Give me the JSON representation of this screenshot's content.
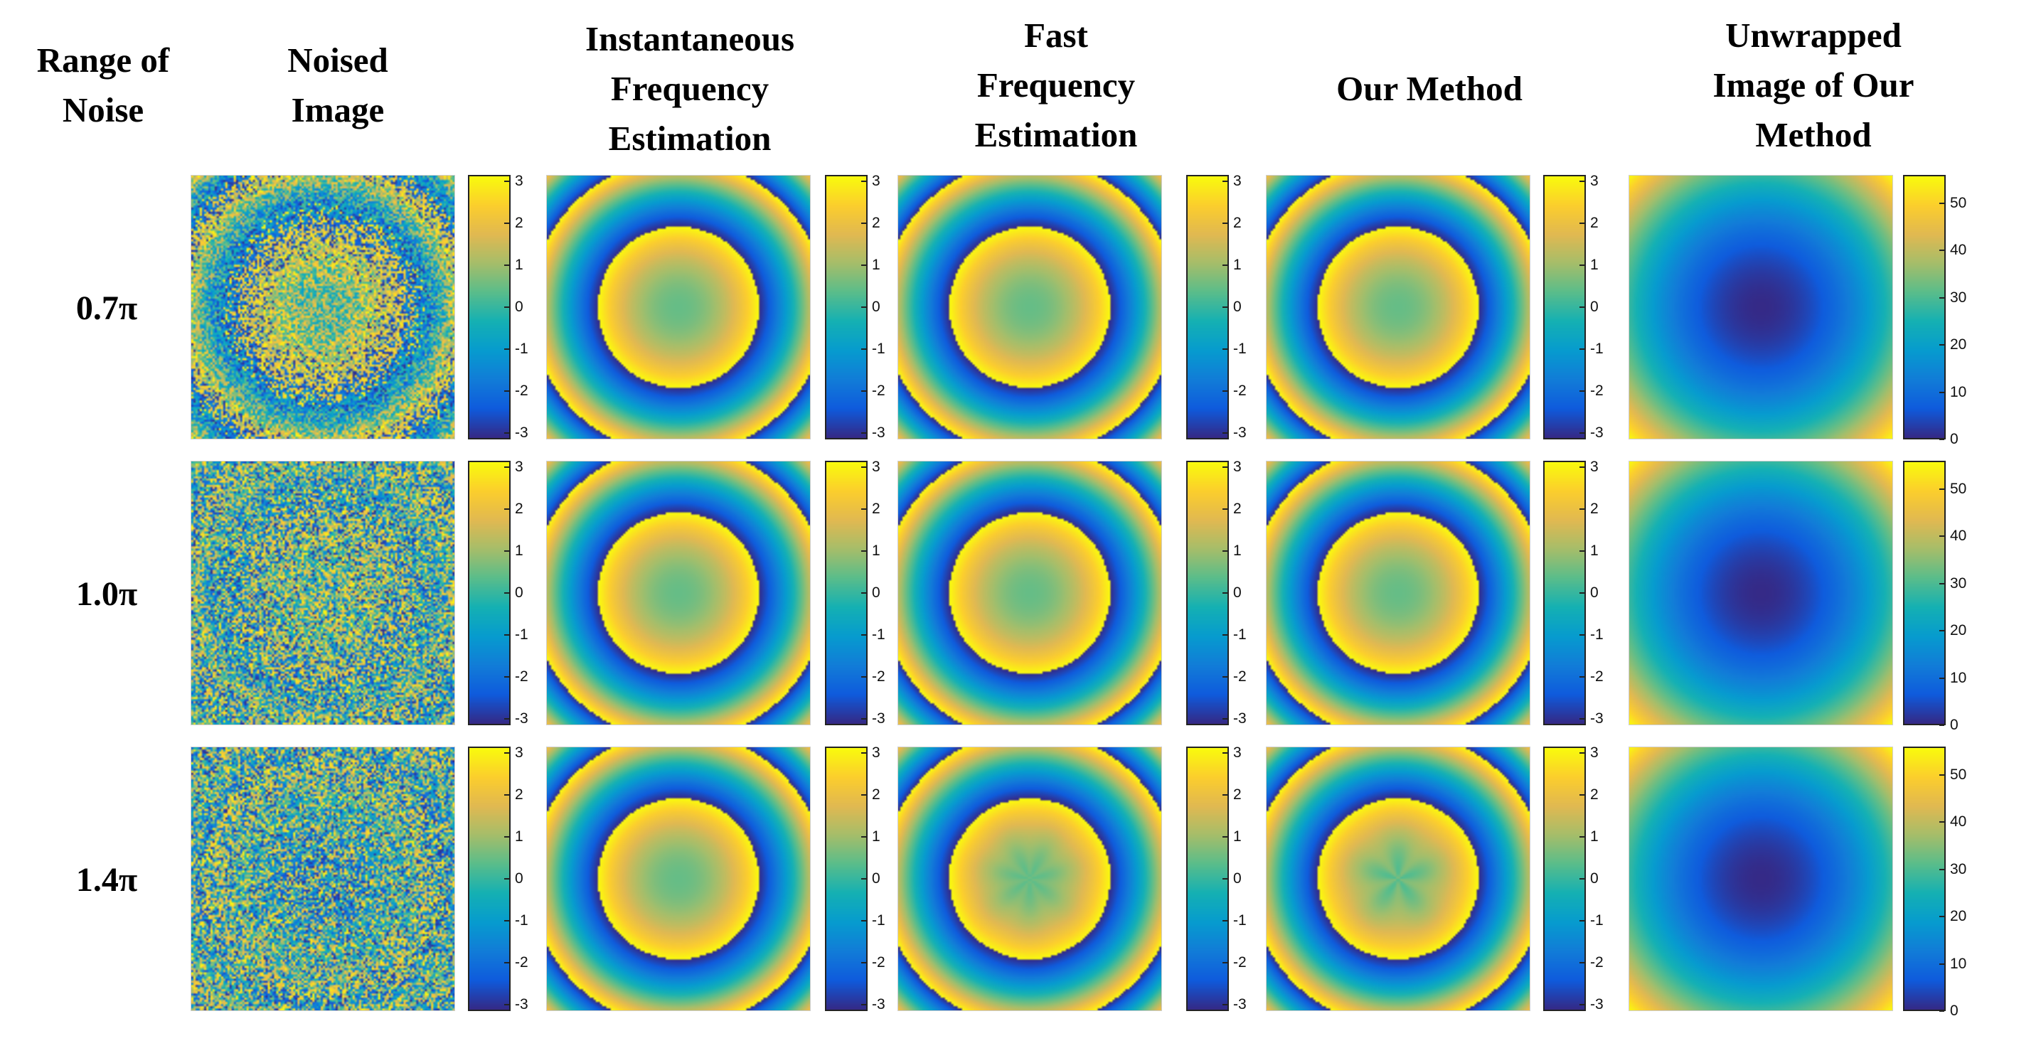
{
  "headers": {
    "range_of_noise": "Range of\nNoise",
    "noised_image": "Noised\nImage",
    "instantaneous": "Instantaneous\nFrequency\nEstimation",
    "fast": "Fast\nFrequency\nEstimation",
    "our_method": "Our Method",
    "unwrapped": "Unwrapped\nImage of Our\nMethod"
  },
  "rows": [
    {
      "label": "0.7π",
      "noise": 0.7
    },
    {
      "label": "1.0π",
      "noise": 1.0
    },
    {
      "label": "1.4π",
      "noise": 1.4
    }
  ],
  "wrapped_colorbar_ticks": [
    "3",
    "2",
    "1",
    "0",
    "-1",
    "-2",
    "-3"
  ],
  "unwrapped_colorbar_ticks": [
    "50",
    "40",
    "30",
    "20",
    "10",
    "0"
  ],
  "colormap": "parula",
  "colors": {
    "parula_low": "#352a87",
    "parula_mid": "#21b5aa",
    "parula_high": "#f9fb0e"
  }
}
